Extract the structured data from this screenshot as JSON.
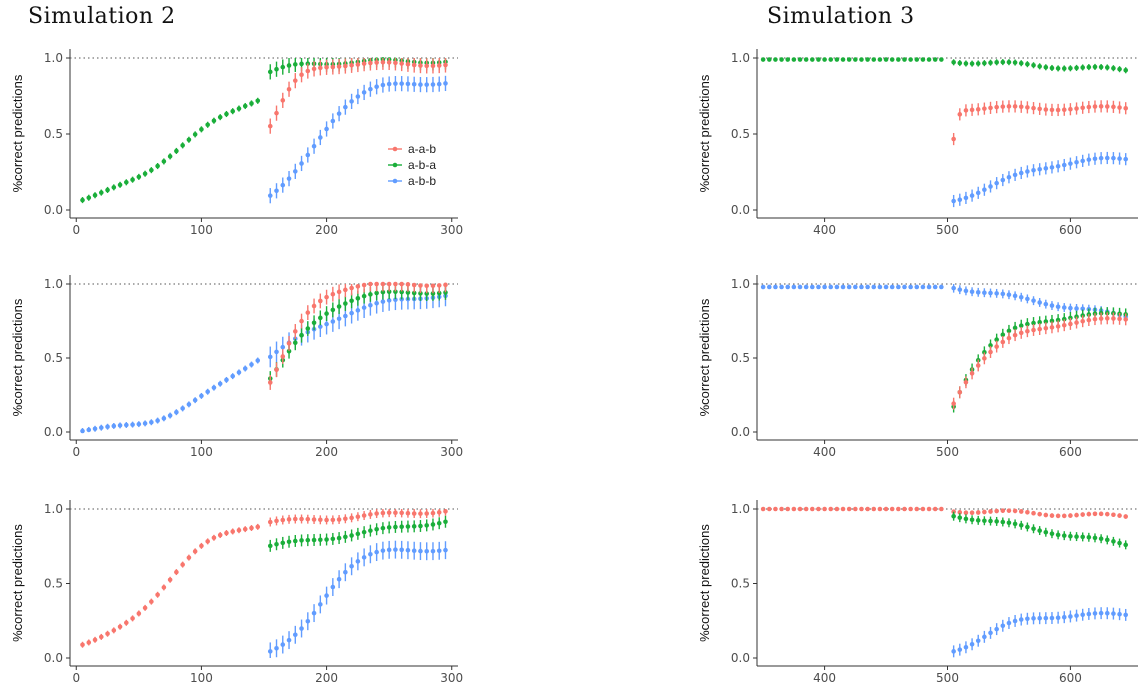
{
  "titles": {
    "left": "Simulation 2",
    "right": "Simulation 3"
  },
  "colors": {
    "a-a-b": "#F8766D",
    "a-b-a": "#1AAE3A",
    "a-b-b": "#619CFF",
    "reference": "#555555",
    "axis": "#333333"
  },
  "legend": [
    "a-a-b",
    "a-b-a",
    "a-b-b"
  ],
  "chart_data": [
    {
      "id": "sim2-row1",
      "type": "scatter",
      "ylabel": "%correct predictions",
      "xlim": [
        -5,
        305
      ],
      "ylim": [
        0,
        1
      ],
      "xticks": [
        0,
        100,
        200,
        300
      ],
      "yticks": [
        0.0,
        0.5,
        1.0
      ],
      "ytick_labels": [
        "0.0",
        "0.5",
        "1.0"
      ],
      "reference_line": 1.0,
      "legend_placement": "right",
      "series": [
        {
          "key": "a-b-a",
          "segments": [
            {
              "x0": 5,
              "x1": 145,
              "n": 29,
              "curve": "sigmoid",
              "k": 0.03,
              "x_mid": 85,
              "lo": 0.0,
              "hi": 0.85,
              "err": 0.02
            },
            {
              "x0": 155,
              "x1": 295,
              "n": 29,
              "curve": "sigmoid",
              "k": 0.045,
              "x_mid": 120,
              "lo": 0.55,
              "hi": 0.98,
              "err": 0.05
            }
          ]
        },
        {
          "name": "a-a-b",
          "key": "a-a-b",
          "segments": [
            {
              "x0": 155,
              "x1": 295,
              "n": 29,
              "curve": "sigmoid",
              "k": 0.1,
              "x_mid": 160,
              "lo": 0.3,
              "hi": 0.96,
              "err": 0.05
            }
          ]
        },
        {
          "name": "a-b-b",
          "key": "a-b-b",
          "segments": [
            {
              "x0": 155,
              "x1": 295,
              "n": 29,
              "curve": "sigmoid",
              "k": 0.06,
              "x_mid": 190,
              "lo": 0.0,
              "hi": 0.84,
              "err": 0.05
            }
          ]
        }
      ]
    },
    {
      "id": "sim3-row1",
      "type": "scatter",
      "ylabel": "%correct predictions",
      "xlim": [
        345,
        655
      ],
      "ylim": [
        0,
        1
      ],
      "xticks": [
        400,
        500,
        600
      ],
      "yticks": [
        0.0,
        0.5,
        1.0
      ],
      "ytick_labels": [
        "0.0",
        "0.5",
        "1.0"
      ],
      "reference_line": 1.0,
      "series": [
        {
          "key": "a-b-a",
          "segments": [
            {
              "x0": 350,
              "x1": 495,
              "n": 30,
              "curve": "flat",
              "y": 0.99,
              "err": 0.005
            },
            {
              "x0": 505,
              "x1": 645,
              "n": 29,
              "curve": "linear",
              "y0": 0.98,
              "y1": 0.92,
              "err": 0.02
            }
          ]
        },
        {
          "key": "a-a-b",
          "segments": [
            {
              "x0": 505,
              "x1": 645,
              "n": 29,
              "curve": "sigmoid",
              "k": 0.5,
              "x_mid": 505,
              "lo": 0.28,
              "hi": 0.67,
              "err": 0.04
            }
          ]
        },
        {
          "key": "a-b-b",
          "segments": [
            {
              "x0": 505,
              "x1": 645,
              "n": 29,
              "curve": "sigmoid",
              "k": 0.04,
              "x_mid": 540,
              "lo": 0.0,
              "hi": 0.34,
              "err": 0.04
            }
          ]
        }
      ]
    },
    {
      "id": "sim2-row2",
      "type": "scatter",
      "ylabel": "%correct predictions",
      "xlim": [
        -5,
        305
      ],
      "ylim": [
        0,
        1
      ],
      "xticks": [
        0,
        100,
        200,
        300
      ],
      "yticks": [
        0.0,
        0.5,
        1.0
      ],
      "ytick_labels": [
        "0.0",
        "0.5",
        "1.0"
      ],
      "reference_line": 1.0,
      "series": [
        {
          "key": "a-b-b",
          "segments": [
            {
              "x0": 5,
              "x1": 145,
              "n": 29,
              "curve": "sigmoid",
              "k": 0.035,
              "x_mid": 120,
              "lo": 0.0,
              "hi": 0.7,
              "err": 0.02
            },
            {
              "x0": 155,
              "x1": 295,
              "n": 29,
              "curve": "sigmoid",
              "k": 0.025,
              "x_mid": 150,
              "lo": 0.0,
              "hi": 0.95,
              "err": 0.07
            }
          ]
        },
        {
          "key": "a-b-a",
          "segments": [
            {
              "x0": 155,
              "x1": 295,
              "n": 29,
              "curve": "sigmoid",
              "k": 0.05,
              "x_mid": 165,
              "lo": 0.0,
              "hi": 0.95,
              "err": 0.05
            }
          ]
        },
        {
          "key": "a-a-b",
          "segments": [
            {
              "x0": 155,
              "x1": 295,
              "n": 29,
              "curve": "sigmoid",
              "k": 0.07,
              "x_mid": 165,
              "lo": 0.0,
              "hi": 1.0,
              "err": 0.05
            }
          ]
        }
      ]
    },
    {
      "id": "sim3-row2",
      "type": "scatter",
      "ylabel": "%correct predictions",
      "xlim": [
        345,
        655
      ],
      "ylim": [
        0,
        1
      ],
      "xticks": [
        400,
        500,
        600
      ],
      "yticks": [
        0.0,
        0.5,
        1.0
      ],
      "ytick_labels": [
        "0.0",
        "0.5",
        "1.0"
      ],
      "reference_line": 1.0,
      "series": [
        {
          "key": "a-b-b",
          "segments": [
            {
              "x0": 350,
              "x1": 495,
              "n": 30,
              "curve": "flat",
              "y": 0.98,
              "err": 0.005
            },
            {
              "x0": 505,
              "x1": 645,
              "n": 29,
              "curve": "linear",
              "y0": 0.98,
              "y1": 0.78,
              "err": 0.03
            }
          ]
        },
        {
          "key": "a-b-a",
          "segments": [
            {
              "x0": 505,
              "x1": 645,
              "n": 29,
              "curve": "exp",
              "y_start": 0.18,
              "y_end": 0.8,
              "k": 0.035,
              "err": 0.04
            }
          ]
        },
        {
          "key": "a-a-b",
          "segments": [
            {
              "x0": 505,
              "x1": 645,
              "n": 29,
              "curve": "exp",
              "y_start": 0.2,
              "y_end": 0.77,
              "k": 0.03,
              "err": 0.04
            }
          ]
        }
      ]
    },
    {
      "id": "sim2-row3",
      "type": "scatter",
      "ylabel": "%correct predictions",
      "xlim": [
        -5,
        305
      ],
      "ylim": [
        0,
        1
      ],
      "xticks": [
        0,
        100,
        200,
        300
      ],
      "yticks": [
        0.0,
        0.5,
        1.0
      ],
      "ytick_labels": [
        "0.0",
        "0.5",
        "1.0"
      ],
      "reference_line": 1.0,
      "series": [
        {
          "key": "a-a-b",
          "segments": [
            {
              "x0": 5,
              "x1": 145,
              "n": 29,
              "curve": "sigmoid",
              "k": 0.045,
              "x_mid": 70,
              "lo": 0.05,
              "hi": 0.92,
              "err": 0.02
            },
            {
              "x0": 155,
              "x1": 295,
              "n": 29,
              "curve": "linear",
              "y0": 0.91,
              "y1": 0.99,
              "err": 0.03
            }
          ]
        },
        {
          "key": "a-b-a",
          "segments": [
            {
              "x0": 155,
              "x1": 295,
              "n": 29,
              "curve": "linear",
              "y0": 0.75,
              "y1": 0.92,
              "err": 0.04
            }
          ]
        },
        {
          "key": "a-b-b",
          "segments": [
            {
              "x0": 155,
              "x1": 295,
              "n": 29,
              "curve": "sigmoid",
              "k": 0.07,
              "x_mid": 195,
              "lo": 0.0,
              "hi": 0.73,
              "err": 0.06
            }
          ]
        }
      ]
    },
    {
      "id": "sim3-row3",
      "type": "scatter",
      "ylabel": "%correct predictions",
      "xlim": [
        345,
        655
      ],
      "ylim": [
        0,
        1
      ],
      "xticks": [
        400,
        500,
        600
      ],
      "yticks": [
        0.0,
        0.5,
        1.0
      ],
      "ytick_labels": [
        "0.0",
        "0.5",
        "1.0"
      ],
      "reference_line": 1.0,
      "series": [
        {
          "key": "a-a-b",
          "segments": [
            {
              "x0": 350,
              "x1": 495,
              "n": 30,
              "curve": "flat",
              "y": 1.0,
              "err": 0.003
            },
            {
              "x0": 505,
              "x1": 645,
              "n": 29,
              "curve": "linear",
              "y0": 0.99,
              "y1": 0.95,
              "err": 0.015
            }
          ]
        },
        {
          "key": "a-b-a",
          "segments": [
            {
              "x0": 505,
              "x1": 645,
              "n": 29,
              "curve": "linear",
              "y0": 0.96,
              "y1": 0.76,
              "err": 0.03
            }
          ]
        },
        {
          "key": "a-b-b",
          "segments": [
            {
              "x0": 505,
              "x1": 645,
              "n": 29,
              "curve": "sigmoid",
              "k": 0.06,
              "x_mid": 530,
              "lo": 0.0,
              "hi": 0.29,
              "err": 0.04
            }
          ]
        }
      ]
    }
  ]
}
